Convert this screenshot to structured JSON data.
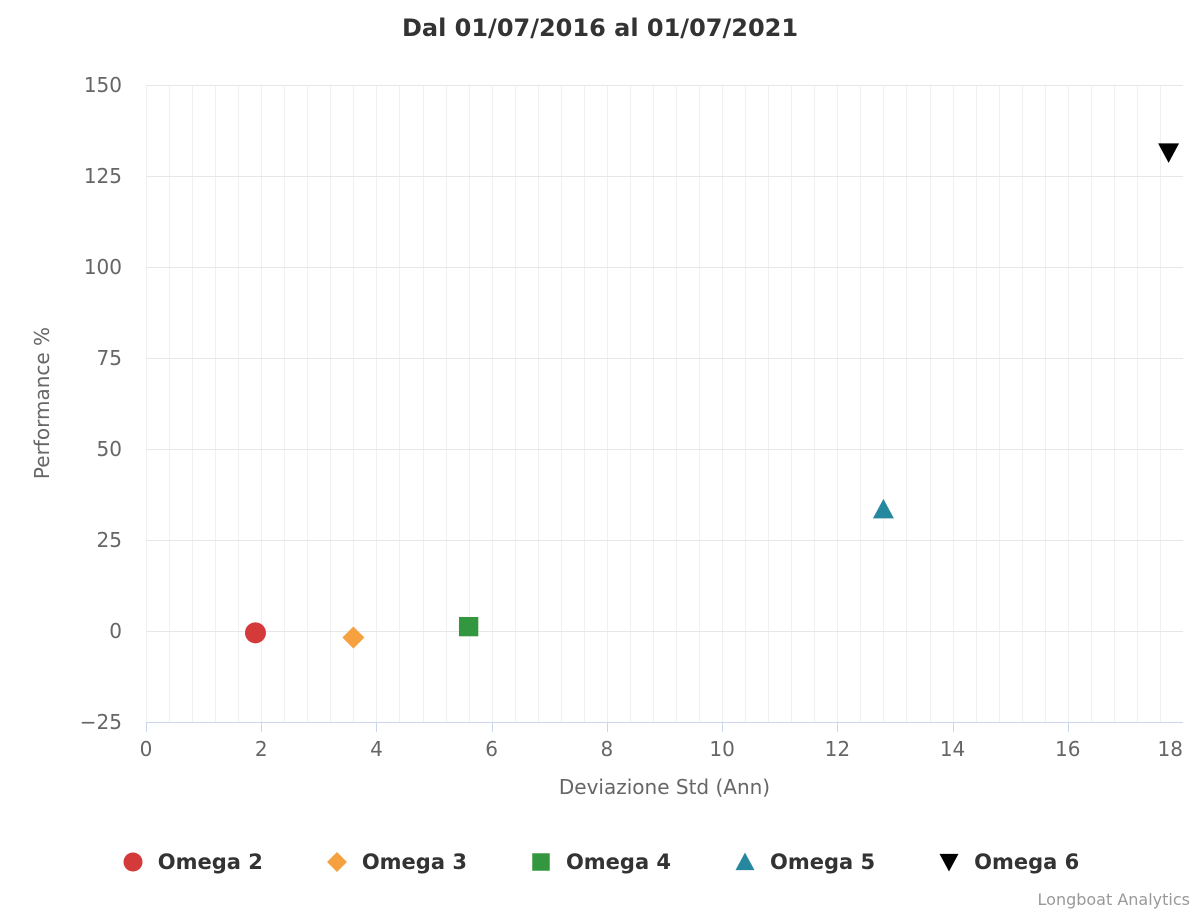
{
  "chart_data": {
    "type": "scatter",
    "title": "Dal 01/07/2016 al 01/07/2021",
    "xlabel": "Deviazione Std (Ann)",
    "ylabel": "Performance %",
    "xlim": [
      0,
      18
    ],
    "ylim": [
      -25,
      150
    ],
    "x_tick_step": 2,
    "x_minor_grid_step": 0.4,
    "y_tick_step": 25,
    "grid": true,
    "legend_position": "bottom",
    "series": [
      {
        "name": "Omega 2",
        "marker": "circle",
        "color": "#d43a3a",
        "points": [
          {
            "x": 1.9,
            "y": -0.5
          }
        ]
      },
      {
        "name": "Omega 3",
        "marker": "diamond",
        "color": "#f6a13f",
        "points": [
          {
            "x": 3.6,
            "y": -1.8
          }
        ]
      },
      {
        "name": "Omega 4",
        "marker": "square",
        "color": "#33973f",
        "points": [
          {
            "x": 5.6,
            "y": 1.2
          }
        ]
      },
      {
        "name": "Omega 5",
        "marker": "triangle",
        "color": "#25889e",
        "points": [
          {
            "x": 12.8,
            "y": 33.4
          }
        ]
      },
      {
        "name": "Omega 6",
        "marker": "triangle-down",
        "color": "#000000",
        "points": [
          {
            "x": 17.75,
            "y": 131.5
          }
        ]
      }
    ],
    "credits": "Longboat Analytics",
    "colors": {
      "title_text": "#333333",
      "axis_text": "#666666",
      "axis_line": "#ccd6eb",
      "grid_major": "#e7e7e7",
      "grid_minor": "#f0f0f0",
      "credits_text": "#999999"
    }
  }
}
